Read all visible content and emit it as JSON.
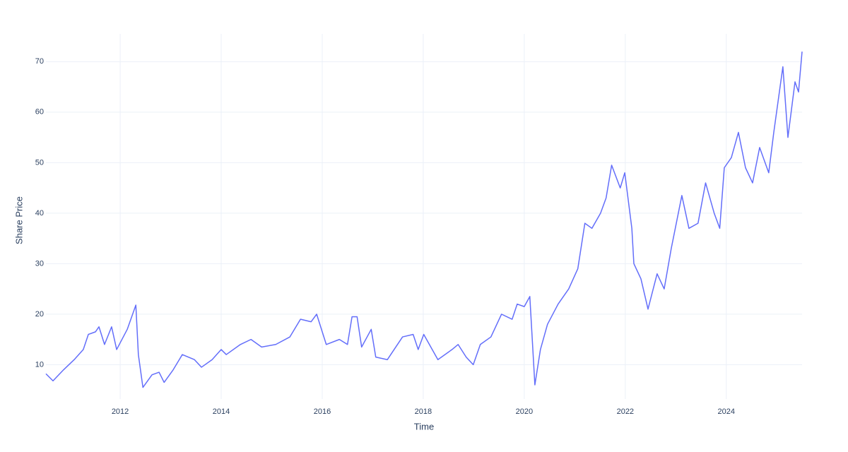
{
  "chart_data": {
    "type": "line",
    "x_label": "Time",
    "y_label": "Share Price",
    "xlim": [
      2010.53,
      2025.5
    ],
    "ylim": [
      3.2,
      75.5
    ],
    "xticks": [
      2012,
      2014,
      2016,
      2018,
      2020,
      2022,
      2024
    ],
    "yticks": [
      10,
      20,
      30,
      40,
      50,
      60,
      70
    ],
    "grid": true,
    "series": [
      {
        "name": "Share Price",
        "color": "#636efa",
        "x": [
          2010.53,
          2010.67,
          2010.88,
          2011.09,
          2011.27,
          2011.37,
          2011.51,
          2011.58,
          2011.69,
          2011.83,
          2011.93,
          2012.14,
          2012.31,
          2012.36,
          2012.45,
          2012.63,
          2012.77,
          2012.87,
          2013.05,
          2013.23,
          2013.47,
          2013.61,
          2013.82,
          2014.0,
          2014.1,
          2014.38,
          2014.59,
          2014.8,
          2015.08,
          2015.36,
          2015.57,
          2015.78,
          2015.89,
          2016.08,
          2016.34,
          2016.5,
          2016.59,
          2016.69,
          2016.78,
          2016.97,
          2017.06,
          2017.29,
          2017.59,
          2017.8,
          2017.9,
          2018.01,
          2018.29,
          2018.57,
          2018.69,
          2018.85,
          2018.99,
          2019.13,
          2019.34,
          2019.55,
          2019.76,
          2019.86,
          2020.0,
          2020.11,
          2020.21,
          2020.32,
          2020.46,
          2020.67,
          2020.88,
          2021.06,
          2021.2,
          2021.34,
          2021.51,
          2021.62,
          2021.73,
          2021.9,
          2021.99,
          2022.13,
          2022.17,
          2022.31,
          2022.45,
          2022.63,
          2022.77,
          2022.91,
          2023.12,
          2023.26,
          2023.44,
          2023.59,
          2023.76,
          2023.87,
          2023.96,
          2024.1,
          2024.24,
          2024.38,
          2024.52,
          2024.66,
          2024.84,
          2024.94,
          2025.12,
          2025.22,
          2025.36,
          2025.43,
          2025.5
        ],
        "values": [
          8.2,
          6.8,
          9,
          11,
          13,
          16,
          16.5,
          17.5,
          14,
          17.5,
          13,
          17,
          21.8,
          12,
          5.5,
          8,
          8.5,
          6.5,
          9,
          12,
          11,
          9.5,
          11,
          13,
          12,
          14,
          15,
          13.5,
          14,
          15.5,
          19,
          18.5,
          20,
          14,
          15,
          14,
          19.5,
          19.5,
          13.5,
          17,
          11.5,
          11,
          15.5,
          16,
          13,
          16,
          11,
          13,
          14,
          11.5,
          10,
          14,
          15.5,
          20,
          19,
          22,
          21.5,
          23.5,
          6,
          13,
          18,
          22,
          25,
          29,
          38,
          37,
          40,
          43,
          49.5,
          45,
          48,
          37,
          30,
          27,
          21,
          28,
          25,
          33,
          43.5,
          37,
          38,
          46,
          40,
          37,
          49,
          51,
          56,
          49,
          46,
          53,
          48,
          56,
          69,
          55,
          66,
          64,
          72
        ]
      }
    ]
  }
}
